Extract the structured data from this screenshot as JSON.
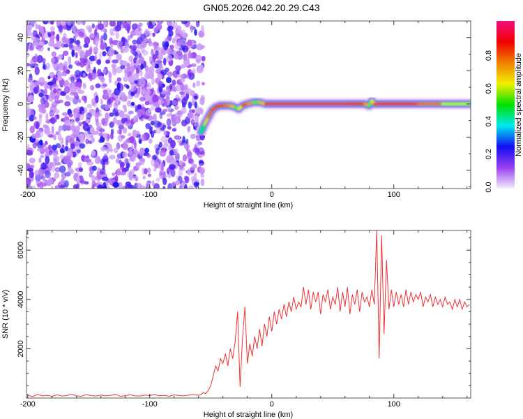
{
  "title": "GN05.2026.042.20.29.C43",
  "chart_data": [
    {
      "type": "heatmap",
      "name": "spectrogram",
      "xlabel": "Height of straight line (km)",
      "ylabel": "Frequency (Hz)",
      "xlim": [
        -201,
        163
      ],
      "ylim": [
        -51,
        50
      ],
      "xticks": [
        -200,
        -100,
        0,
        100
      ],
      "yticks": [
        -40,
        -20,
        0,
        20,
        40
      ],
      "colorbar": {
        "label": "Normalized spectral amplitude",
        "range": [
          0,
          1
        ],
        "ticks": [
          "0.0",
          "0.2",
          "0.4",
          "0.6",
          "0.8"
        ],
        "colors": [
          "#f4ecfc",
          "#9a40f0",
          "#1010f0",
          "#00e8f0",
          "#00e000",
          "#f0f000",
          "#f08000",
          "#f00000",
          "#f01080"
        ]
      },
      "noise_region_x": [
        -201,
        -56
      ],
      "noise_region_amplitude": [
        0.05,
        0.25
      ],
      "ridge": {
        "x": [
          -58,
          -55,
          -52,
          -49,
          -46,
          -42,
          -38,
          -34,
          -30,
          -27,
          -24,
          -20,
          -15,
          -10,
          -5,
          0,
          20,
          40,
          60,
          70,
          76,
          80,
          82,
          84,
          88,
          100,
          120,
          140,
          162
        ],
        "freq": [
          -17,
          -12,
          -8,
          -4,
          -2,
          -1,
          -1,
          -1,
          -2,
          -3,
          -1,
          0,
          1,
          1,
          0,
          0,
          0,
          0,
          0,
          0,
          0,
          -1,
          2,
          0,
          0,
          0,
          0,
          0,
          0
        ],
        "amplitude": [
          0.3,
          0.6,
          0.75,
          0.85,
          0.9,
          0.9,
          0.75,
          0.8,
          0.6,
          0.5,
          0.8,
          0.9,
          0.6,
          0.5,
          0.9,
          0.95,
          0.95,
          0.95,
          0.95,
          0.9,
          0.85,
          0.6,
          0.5,
          0.8,
          0.9,
          0.95,
          0.85,
          0.7,
          0.5
        ]
      }
    },
    {
      "type": "line",
      "name": "snr",
      "xlabel": "Height of straight line (km)",
      "ylabel": "SNR (10 * v/v)",
      "xlim": [
        -201,
        163
      ],
      "ylim": [
        0,
        6800
      ],
      "xticks": [
        -200,
        -100,
        0,
        100
      ],
      "yticks": [
        2000,
        4000,
        6000
      ],
      "color": "#f03030",
      "segments": [
        {
          "x_start": -200,
          "x_step": 4,
          "values": [
            120,
            60,
            150,
            90,
            110,
            70,
            130,
            80,
            100,
            160,
            90,
            70,
            140,
            100,
            80,
            120,
            90,
            110,
            150,
            70,
            100,
            130,
            90,
            80,
            120,
            100,
            140,
            90,
            110,
            70,
            130,
            100,
            90,
            120,
            140,
            110
          ]
        },
        {
          "x_start": -58,
          "x_step": 2,
          "values": [
            150,
            220,
            180,
            320,
            500,
            900,
            1300,
            1100,
            1600,
            1400,
            1800,
            1300,
            2000,
            1600,
            2300,
            3500,
            450,
            2400,
            3700,
            1400,
            2200,
            1700,
            2500,
            2000,
            2800,
            2100,
            3000,
            2500,
            3300,
            2700,
            3500,
            3000,
            3600,
            3200,
            3800,
            3300,
            3900,
            3500,
            4100,
            3600,
            3900,
            3700,
            4500,
            3800,
            4400,
            3600,
            4300,
            3900,
            4300,
            3400,
            4200,
            3900,
            4400,
            3600,
            4100,
            3800,
            4500,
            3500,
            4300,
            3700,
            4500,
            3400,
            4200,
            3800,
            4400,
            3500,
            4300,
            3900,
            4100,
            3700,
            4400,
            3800,
            6800,
            1600,
            6600,
            2600,
            5600,
            3600,
            4400,
            3700,
            4300,
            3800,
            4200,
            3700,
            4400,
            3800,
            4300,
            3900,
            4200,
            4000,
            4300,
            3700,
            4100,
            3900,
            4200,
            3700,
            4100,
            3800,
            4000,
            3700,
            4100,
            3800,
            3900,
            3600,
            4000,
            3700,
            4000,
            3600,
            3900,
            3700,
            3800
          ]
        }
      ]
    }
  ]
}
